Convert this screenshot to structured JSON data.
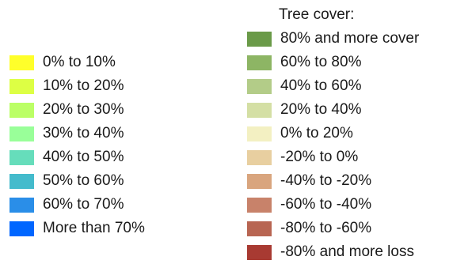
{
  "left_legend": {
    "items": [
      {
        "label": "0% to 10%",
        "color": "#ffff2a"
      },
      {
        "label": "10% to 20%",
        "color": "#ddff44"
      },
      {
        "label": "20% to 30%",
        "color": "#bbff66"
      },
      {
        "label": "30% to 40%",
        "color": "#99ff99"
      },
      {
        "label": "40% to 50%",
        "color": "#66ddbb"
      },
      {
        "label": "50% to 60%",
        "color": "#44bbcc"
      },
      {
        "label": "60% to 70%",
        "color": "#2a8ee8"
      },
      {
        "label": "More than 70%",
        "color": "#0066ff"
      }
    ]
  },
  "right_legend": {
    "title": "Tree cover:",
    "items": [
      {
        "label": "80% and more cover",
        "color": "#6a9a48"
      },
      {
        "label": "60% to 80%",
        "color": "#8db564"
      },
      {
        "label": "40% to 60%",
        "color": "#b3cc88"
      },
      {
        "label": "20% to 40%",
        "color": "#d4dfa4"
      },
      {
        "label": "0% to 20%",
        "color": "#f3f0c2"
      },
      {
        "label": "-20% to 0%",
        "color": "#e8cfa0"
      },
      {
        "label": "-40% to -20%",
        "color": "#d9a57e"
      },
      {
        "label": "-60% to -40%",
        "color": "#c8826a"
      },
      {
        "label": "-80% to -60%",
        "color": "#b86552"
      },
      {
        "label": "-80% and more loss",
        "color": "#a83a32"
      }
    ]
  }
}
